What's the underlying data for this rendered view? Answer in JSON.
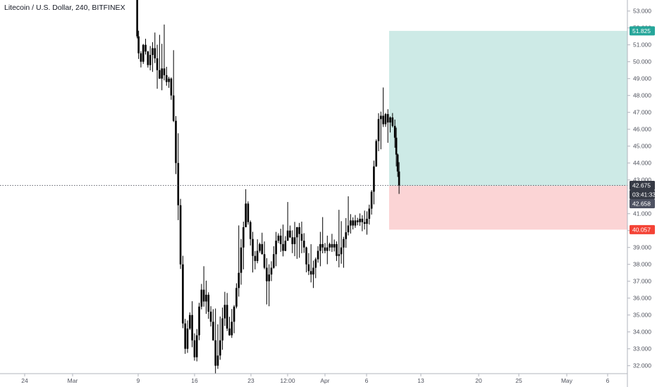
{
  "title": "Litecoin / U.S. Dollar, 240, BITFINEX",
  "colors": {
    "background": "#ffffff",
    "candle": "#000000",
    "profit_zone": "#cdeae6",
    "loss_zone": "#fbd4d5",
    "target_badge": "#26a69a",
    "stop_badge": "#f44336",
    "price_badge": "#363a45",
    "timer_badge": "#363a45",
    "entry_badge": "#4e5262"
  },
  "chart_data": {
    "type": "candlestick",
    "title": "Litecoin / U.S. Dollar, 240, BITFINEX",
    "y_axis": {
      "range": [
        31.7,
        53.5
      ],
      "position": "right",
      "ticks": [
        "53.000",
        "52.000",
        "51.000",
        "50.000",
        "49.000",
        "48.000",
        "47.000",
        "46.000",
        "45.000",
        "44.000",
        "43.000",
        "41.000",
        "40.000",
        "39.000",
        "38.000",
        "37.000",
        "36.000",
        "35.000",
        "34.000",
        "33.000",
        "32.000"
      ]
    },
    "x_axis": {
      "ticks": [
        "24",
        "Mar",
        "9",
        "16",
        "23",
        "12:00",
        "Apr",
        "6",
        "13",
        "20",
        "25",
        "May",
        "6"
      ]
    },
    "grid": false,
    "close_path": [
      [
        0.0,
        53.8
      ],
      [
        0.7,
        51.5
      ],
      [
        1.0,
        50.5
      ],
      [
        1.5,
        50.0
      ],
      [
        2.0,
        51.0
      ],
      [
        2.5,
        50.6
      ],
      [
        3.0,
        49.8
      ],
      [
        3.5,
        50.4
      ],
      [
        4.0,
        50.8
      ],
      [
        4.5,
        50.2
      ],
      [
        5.0,
        49.5
      ],
      [
        5.5,
        49.0
      ],
      [
        6.0,
        49.6
      ],
      [
        6.5,
        49.2
      ],
      [
        7.0,
        48.8
      ],
      [
        7.5,
        49.0
      ],
      [
        8.0,
        48.0
      ],
      [
        8.5,
        46.5
      ],
      [
        9.0,
        44.0
      ],
      [
        9.5,
        41.5
      ],
      [
        10.0,
        38.0
      ],
      [
        10.5,
        34.5
      ],
      [
        11.0,
        33.0
      ],
      [
        11.5,
        34.2
      ],
      [
        12.0,
        35.0
      ],
      [
        12.5,
        33.5
      ],
      [
        13.0,
        32.5
      ],
      [
        13.5,
        33.8
      ],
      [
        14.0,
        35.5
      ],
      [
        14.5,
        36.5
      ],
      [
        15.0,
        35.8
      ],
      [
        15.5,
        36.2
      ],
      [
        16.0,
        35.2
      ],
      [
        16.5,
        34.6
      ],
      [
        17.0,
        33.5
      ],
      [
        17.5,
        32.0
      ],
      [
        18.0,
        32.6
      ],
      [
        18.5,
        33.5
      ],
      [
        19.0,
        34.8
      ],
      [
        19.5,
        35.6
      ],
      [
        20.0,
        34.2
      ],
      [
        20.5,
        33.8
      ],
      [
        21.0,
        34.6
      ],
      [
        21.5,
        35.5
      ],
      [
        22.0,
        36.6
      ],
      [
        22.5,
        37.5
      ],
      [
        23.0,
        39.0
      ],
      [
        23.5,
        40.2
      ],
      [
        24.0,
        41.6
      ],
      [
        24.5,
        40.5
      ],
      [
        25.0,
        39.5
      ],
      [
        25.5,
        38.5
      ],
      [
        26.0,
        38.2
      ],
      [
        26.5,
        38.8
      ],
      [
        27.0,
        39.2
      ],
      [
        27.5,
        38.6
      ],
      [
        28.0,
        37.8
      ],
      [
        28.5,
        37.0
      ],
      [
        29.0,
        37.4
      ],
      [
        29.5,
        37.8
      ],
      [
        30.0,
        38.6
      ],
      [
        30.5,
        39.4
      ],
      [
        31.0,
        39.7
      ],
      [
        31.5,
        39.2
      ],
      [
        32.0,
        38.8
      ],
      [
        32.5,
        39.4
      ],
      [
        33.0,
        40.0
      ],
      [
        33.5,
        39.6
      ],
      [
        34.0,
        39.2
      ],
      [
        34.5,
        39.6
      ],
      [
        35.0,
        40.2
      ],
      [
        35.5,
        39.8
      ],
      [
        36.0,
        39.4
      ],
      [
        36.5,
        39.0
      ],
      [
        37.0,
        38.0
      ],
      [
        37.5,
        37.6
      ],
      [
        38.0,
        37.4
      ],
      [
        38.5,
        37.8
      ],
      [
        39.0,
        38.3
      ],
      [
        39.5,
        38.8
      ],
      [
        40.0,
        39.2
      ],
      [
        40.5,
        39.0
      ],
      [
        41.0,
        38.8
      ],
      [
        41.5,
        39.0
      ],
      [
        42.0,
        39.2
      ],
      [
        42.5,
        39.0
      ],
      [
        43.0,
        39.2
      ],
      [
        43.5,
        38.5
      ],
      [
        44.0,
        38.6
      ],
      [
        44.5,
        39.0
      ],
      [
        45.0,
        39.5
      ],
      [
        45.5,
        39.9
      ],
      [
        46.0,
        40.3
      ],
      [
        46.5,
        40.6
      ],
      [
        47.0,
        40.3
      ],
      [
        47.5,
        40.6
      ],
      [
        48.0,
        40.5
      ],
      [
        48.5,
        40.7
      ],
      [
        49.0,
        40.5
      ],
      [
        49.5,
        40.4
      ],
      [
        50.0,
        40.7
      ],
      [
        50.5,
        41.3
      ],
      [
        51.0,
        42.3
      ],
      [
        51.5,
        43.8
      ],
      [
        52.0,
        45.3
      ],
      [
        52.5,
        46.6
      ],
      [
        53.0,
        46.8
      ],
      [
        53.5,
        46.3
      ],
      [
        54.0,
        46.9
      ],
      [
        54.5,
        46.4
      ],
      [
        55.0,
        46.7
      ],
      [
        55.5,
        46.2
      ],
      [
        56.0,
        45.5
      ],
      [
        56.3,
        44.5
      ],
      [
        56.6,
        43.5
      ],
      [
        56.9,
        42.675
      ]
    ],
    "last_price": "42.675",
    "countdown": "03:41:33",
    "long_position": {
      "target": "51.825",
      "entry": "42.658",
      "stop": "40.057"
    }
  }
}
